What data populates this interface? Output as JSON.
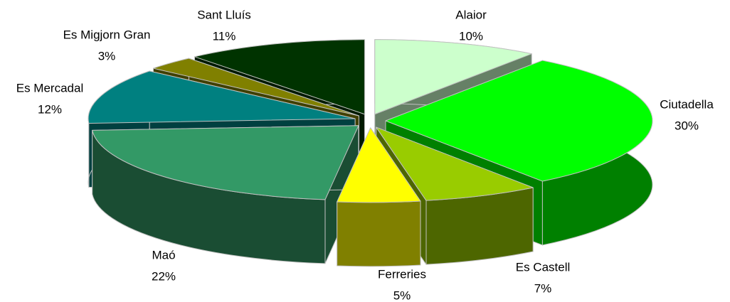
{
  "chart_data": {
    "type": "pie3d",
    "categories": [
      "Alaior",
      "Ciutadella",
      "Es Castell",
      "Ferreries",
      "Maó",
      "Es Mercadal",
      "Es Migjorn Gran",
      "Sant Lluís"
    ],
    "values": [
      10,
      30,
      7,
      5,
      22,
      12,
      3,
      11
    ],
    "value_labels": [
      "10%",
      "30%",
      "7%",
      "5%",
      "22%",
      "12%",
      "3%",
      "11%"
    ],
    "colors": [
      "#ccffcc",
      "#00ff00",
      "#99cc00",
      "#ffff00",
      "#339966",
      "#008080",
      "#808000",
      "#003300"
    ]
  }
}
